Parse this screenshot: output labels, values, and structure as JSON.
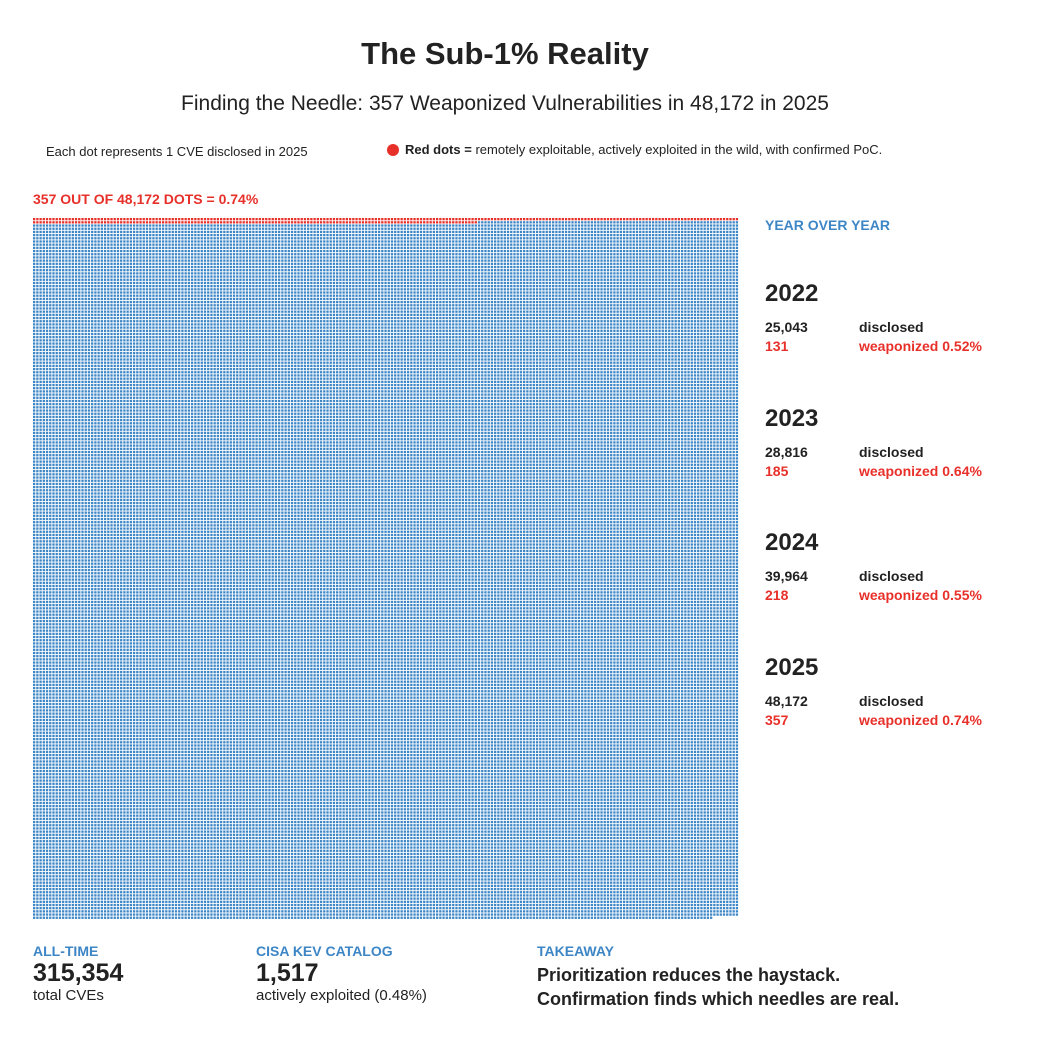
{
  "title": "The Sub-1% Reality",
  "subtitle": "Finding the Needle: 357 Weaponized Vulnerabilities in 48,172 in 2025",
  "legend": {
    "each_dot": "Each dot represents 1 CVE disclosed in 2025",
    "red_bold": "Red dots =",
    "red_desc": "remotely exploitable, actively exploited in the wild, with confirmed PoC."
  },
  "colors": {
    "red": "#e8302a",
    "blue": "#3d86c6"
  },
  "chart_data": {
    "type": "waffle",
    "title": "357 OUT OF 48,172 DOTS = 0.74%",
    "total": 48172,
    "highlighted": 357,
    "series": [
      {
        "name": "weaponized",
        "value": 357,
        "color": "#e8302a"
      },
      {
        "name": "other",
        "value": 47815,
        "color": "#3d86c6"
      }
    ],
    "columns": 219
  },
  "yoy": {
    "heading": "YEAR OVER YEAR",
    "years": [
      {
        "year": "2022",
        "disclosed": "25,043",
        "disclosed_label": "disclosed",
        "weaponized": "131",
        "weaponized_label": "weaponized 0.52%"
      },
      {
        "year": "2023",
        "disclosed": "28,816",
        "disclosed_label": "disclosed",
        "weaponized": "185",
        "weaponized_label": "weaponized 0.64%"
      },
      {
        "year": "2024",
        "disclosed": "39,964",
        "disclosed_label": "disclosed",
        "weaponized": "218",
        "weaponized_label": "weaponized 0.55%"
      },
      {
        "year": "2025",
        "disclosed": "48,172",
        "disclosed_label": "disclosed",
        "weaponized": "357",
        "weaponized_label": "weaponized 0.74%"
      }
    ]
  },
  "footer": {
    "alltime": {
      "heading": "ALL-TIME",
      "value": "315,354",
      "label": "total CVEs"
    },
    "kev": {
      "heading": "CISA KEV CATALOG",
      "value": "1,517",
      "label": "actively exploited (0.48%)"
    },
    "takeaway": {
      "heading": "TAKEAWAY",
      "line1": "Prioritization reduces the haystack.",
      "line2": "Confirmation finds which needles are real."
    }
  }
}
